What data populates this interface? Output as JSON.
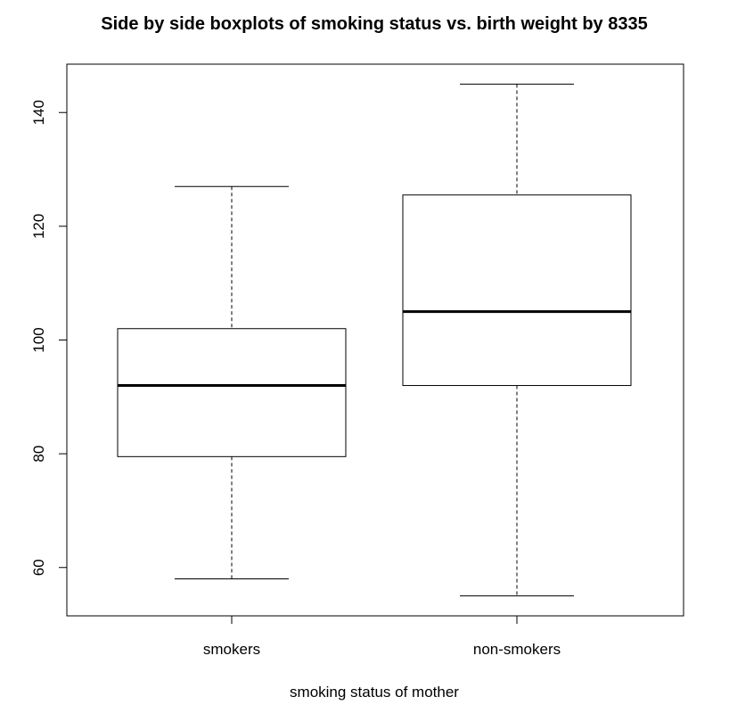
{
  "chart_data": {
    "type": "boxplot",
    "title": "Side by side boxplots of smoking status vs. birth weight by 8335",
    "xlabel": "smoking status of mother",
    "ylabel": "",
    "categories": [
      "smokers",
      "non-smokers"
    ],
    "boxes": [
      {
        "category": "smokers",
        "min": 58,
        "q1": 79.5,
        "median": 92,
        "q3": 102,
        "max": 127
      },
      {
        "category": "non-smokers",
        "min": 55,
        "q1": 92,
        "median": 105,
        "q3": 125.5,
        "max": 145
      }
    ],
    "ylim": [
      51.5,
      148.5
    ],
    "yticks": [
      60,
      80,
      100,
      120,
      140
    ],
    "ytick_labels": [
      "60",
      "80",
      "100",
      "120",
      "140"
    ],
    "grid": false,
    "legend": "none"
  }
}
